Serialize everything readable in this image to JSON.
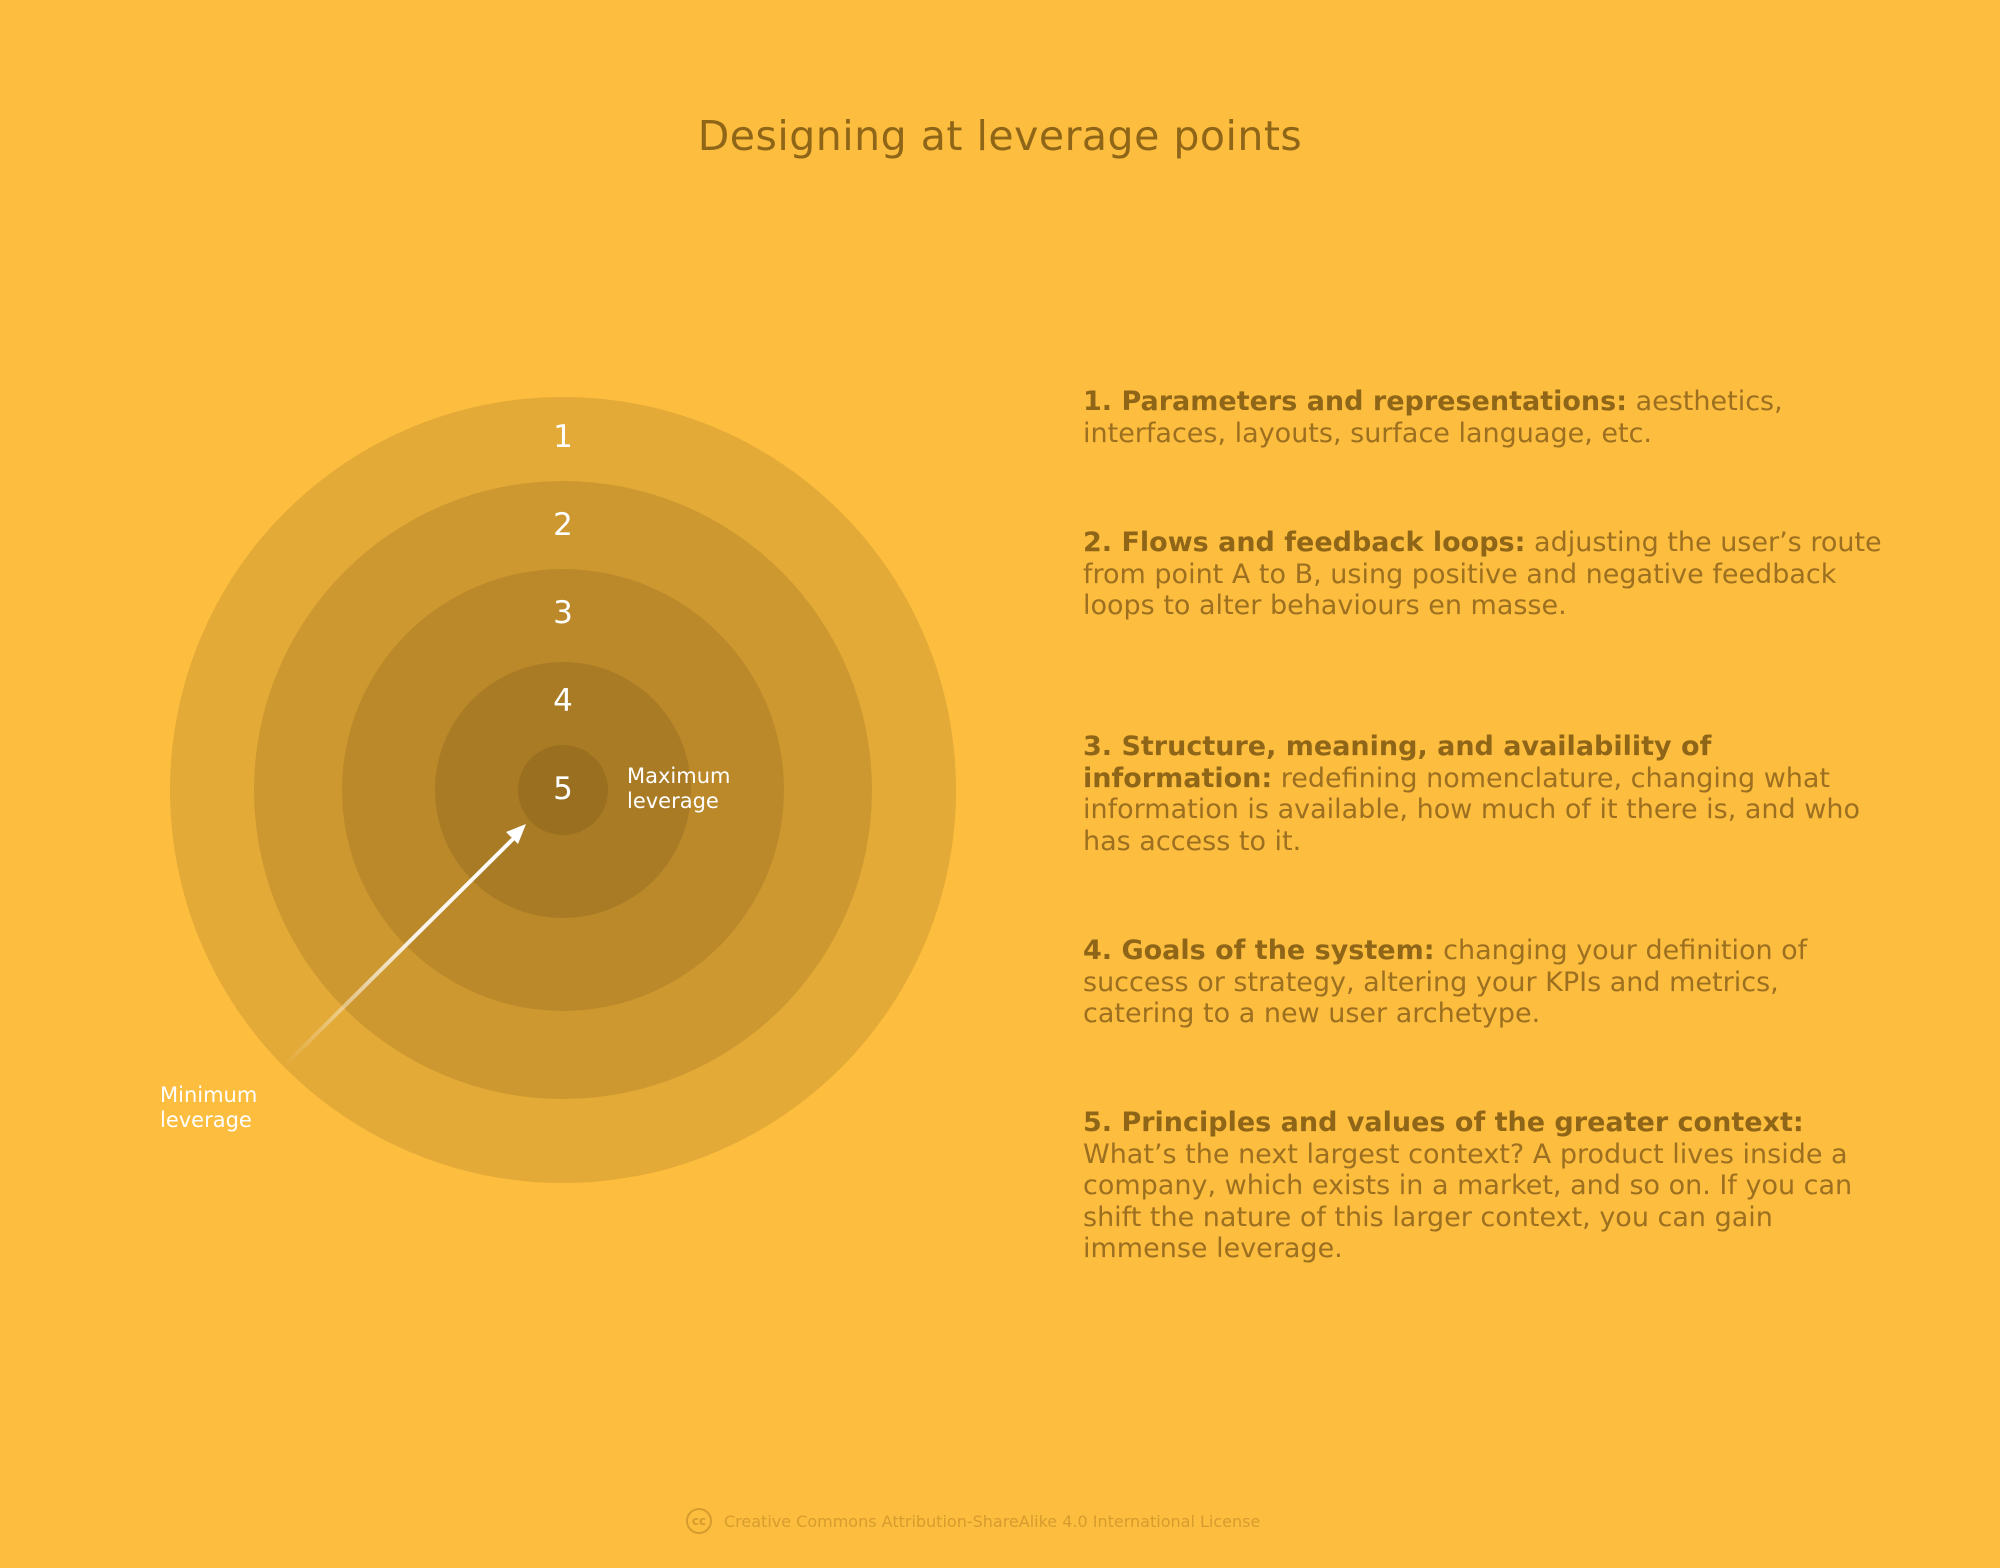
{
  "title": "Designing at leverage points",
  "diagram": {
    "rings": [
      {
        "label": "1",
        "color": "#E3AA38"
      },
      {
        "label": "2",
        "color": "#CE9830"
      },
      {
        "label": "3",
        "color": "#BB892A"
      },
      {
        "label": "4",
        "color": "#A97B25"
      },
      {
        "label": "5",
        "color": "#9A6F20"
      }
    ],
    "max_label": [
      "Maximum",
      "leverage"
    ],
    "min_label": [
      "Minimum",
      "leverage"
    ]
  },
  "points": [
    {
      "head": "1. Parameters and representations:",
      "body": " aesthetics, interfaces, layouts, surface language, etc."
    },
    {
      "head": "2. Flows and feedback loops:",
      "body": " adjusting the user’s route from point A to B, using positive and negative feedback loops to alter behaviours en masse."
    },
    {
      "head": "3. Structure, meaning, and availability of information:",
      "body": " redefining nomenclature, changing what information is available, how much of it there is, and who has access to it."
    },
    {
      "head": "4. Goals of the system:",
      "body": " changing your definition of success or strategy, altering your KPIs and metrics, catering to a new user archetype."
    },
    {
      "head": "5. Principles and values of the greater context:",
      "body": " What’s the next largest context? A product lives inside a company, which exists in a market, and so on. If you can shift the nature of this larger context, you can gain immense leverage."
    }
  ],
  "license": {
    "icon": "cc",
    "text": "Creative Commons Attribution-ShareAlike 4.0 International License"
  }
}
